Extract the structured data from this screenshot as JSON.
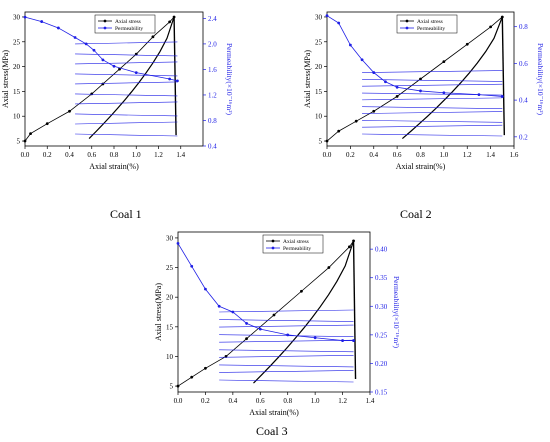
{
  "figure": {
    "captions": [
      "Coal 1",
      "Coal 2",
      "Coal 3"
    ]
  },
  "colors": {
    "stress": "#000000",
    "permeability": "#1f1fe6",
    "axis_right": "#1f1fe6"
  },
  "chart_data": [
    {
      "type": "line",
      "caption": "Coal 1",
      "xlabel": "Axial strain(%)",
      "ylabel": "Axial stress(MPa)",
      "y2label": "Permeability(×10⁻¹⁶m²)",
      "xlim": [
        0.0,
        1.6
      ],
      "ylim": [
        4,
        31
      ],
      "y2lim": [
        0.4,
        2.5
      ],
      "xticks": [
        "0.0",
        "0.2",
        "0.4",
        "0.6",
        "0.8",
        "1.0",
        "1.2",
        "1.4"
      ],
      "yticks": [
        "5",
        "10",
        "15",
        "20",
        "25",
        "30"
      ],
      "y2ticks": [
        "0.4",
        "0.8",
        "1.2",
        "1.6",
        "2.0",
        "2.4"
      ],
      "legend_position": "top-left",
      "series": [
        {
          "name": "Axial stress",
          "axis": "left",
          "style": "loop",
          "x": [
            0.0,
            0.05,
            0.2,
            0.4,
            0.6,
            0.7,
            0.85,
            1.0,
            1.15,
            1.3,
            1.34
          ],
          "y": [
            5,
            6.5,
            8.5,
            11,
            14.5,
            16.5,
            19.5,
            22.5,
            26,
            29,
            30
          ]
        },
        {
          "name": "Permeability",
          "axis": "right",
          "style": "fan",
          "x": [
            0.0,
            0.15,
            0.3,
            0.45,
            0.55,
            0.62,
            0.7,
            0.8,
            1.0,
            1.3,
            1.37
          ],
          "y": [
            2.42,
            2.35,
            2.25,
            2.1,
            2.0,
            1.9,
            1.75,
            1.65,
            1.55,
            1.45,
            1.42
          ]
        }
      ]
    },
    {
      "type": "line",
      "caption": "Coal 2",
      "xlabel": "Axial strain(%)",
      "ylabel": "Axial stress(MPa)",
      "y2label": "Permeability(×10⁻¹⁶m²)",
      "xlim": [
        0.0,
        1.6
      ],
      "ylim": [
        4,
        31
      ],
      "y2lim": [
        0.15,
        0.88
      ],
      "xticks": [
        "0.0",
        "0.2",
        "0.4",
        "0.6",
        "0.8",
        "1.0",
        "1.2",
        "1.4",
        "1.6"
      ],
      "yticks": [
        "5",
        "10",
        "15",
        "20",
        "25",
        "30"
      ],
      "y2ticks": [
        "0.2",
        "0.4",
        "0.6",
        "0.8"
      ],
      "legend_position": "top-left",
      "series": [
        {
          "name": "Axial stress",
          "axis": "left",
          "style": "loop",
          "x": [
            0.0,
            0.1,
            0.25,
            0.4,
            0.6,
            0.8,
            1.0,
            1.2,
            1.4,
            1.5
          ],
          "y": [
            5,
            7,
            9,
            11,
            14,
            17.5,
            21,
            24.5,
            28,
            30
          ]
        },
        {
          "name": "Permeability",
          "axis": "right",
          "style": "fan",
          "x": [
            0.0,
            0.1,
            0.2,
            0.3,
            0.4,
            0.5,
            0.6,
            0.8,
            1.0,
            1.3,
            1.5
          ],
          "y": [
            0.86,
            0.82,
            0.7,
            0.62,
            0.55,
            0.5,
            0.47,
            0.45,
            0.44,
            0.43,
            0.42
          ]
        }
      ]
    },
    {
      "type": "line",
      "caption": "Coal 3",
      "xlabel": "Axial strain(%)",
      "ylabel": "Axial stress(MPa)",
      "y2label": "Permeability(×10⁻¹⁶m²)",
      "xlim": [
        0.0,
        1.4
      ],
      "ylim": [
        4,
        31
      ],
      "y2lim": [
        0.15,
        0.43
      ],
      "xticks": [
        "0.0",
        "0.2",
        "0.4",
        "0.6",
        "0.8",
        "1.0",
        "1.2",
        "1.4"
      ],
      "yticks": [
        "5",
        "10",
        "15",
        "20",
        "25",
        "30"
      ],
      "y2ticks": [
        "0.15",
        "0.20",
        "0.25",
        "0.30",
        "0.35",
        "0.40"
      ],
      "legend_position": "top-center",
      "series": [
        {
          "name": "Axial stress",
          "axis": "left",
          "style": "loop",
          "x": [
            0.0,
            0.1,
            0.2,
            0.35,
            0.5,
            0.7,
            0.9,
            1.1,
            1.25,
            1.28
          ],
          "y": [
            5,
            6.5,
            8,
            10,
            13,
            17,
            21,
            25,
            28.5,
            29.5
          ]
        },
        {
          "name": "Permeability",
          "axis": "right",
          "style": "fan",
          "x": [
            0.0,
            0.1,
            0.2,
            0.3,
            0.4,
            0.5,
            0.6,
            0.8,
            1.0,
            1.2,
            1.28
          ],
          "y": [
            0.41,
            0.37,
            0.33,
            0.3,
            0.29,
            0.27,
            0.26,
            0.25,
            0.245,
            0.24,
            0.24
          ]
        }
      ]
    }
  ]
}
